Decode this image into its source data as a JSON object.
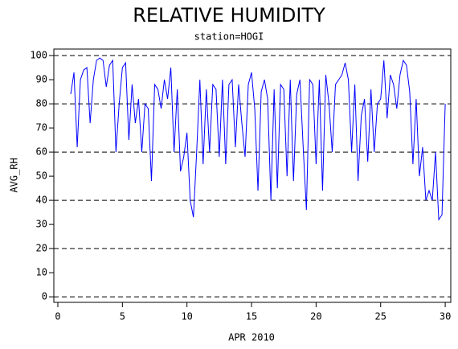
{
  "chart_data": {
    "type": "line",
    "title": "RELATIVE HUMIDITY",
    "subtitle": "station=HOGI",
    "x_label": "APR 2010",
    "y_label": "AVG_RH",
    "xlim": [
      -0.31,
      30.43
    ],
    "ylim": [
      -2.3,
      102.7
    ],
    "xticks": [
      0,
      5,
      10,
      15,
      20,
      25,
      30
    ],
    "yticks": [
      0,
      10,
      20,
      30,
      40,
      50,
      60,
      70,
      80,
      90,
      100
    ],
    "ygrid": [
      0,
      20,
      40,
      60,
      80,
      100
    ],
    "series": [
      {
        "color": "#0000ff",
        "x": [
          1,
          1.25,
          1.5,
          1.75,
          2,
          2.25,
          2.5,
          2.75,
          3,
          3.25,
          3.5,
          3.75,
          4,
          4.25,
          4.5,
          4.75,
          5,
          5.25,
          5.5,
          5.75,
          6,
          6.25,
          6.5,
          6.75,
          7,
          7.25,
          7.5,
          7.75,
          8,
          8.25,
          8.5,
          8.75,
          9,
          9.25,
          9.5,
          9.75,
          10,
          10.25,
          10.5,
          10.75,
          11,
          11.25,
          11.5,
          11.75,
          12,
          12.25,
          12.5,
          12.75,
          13,
          13.25,
          13.5,
          13.75,
          14,
          14.25,
          14.5,
          14.75,
          15,
          15.25,
          15.5,
          15.75,
          16,
          16.25,
          16.5,
          16.75,
          17,
          17.25,
          17.5,
          17.75,
          18,
          18.25,
          18.5,
          18.75,
          19,
          19.25,
          19.5,
          19.75,
          20,
          20.25,
          20.5,
          20.75,
          21,
          21.25,
          21.5,
          21.75,
          22,
          22.25,
          22.5,
          22.75,
          23,
          23.25,
          23.5,
          23.75,
          24,
          24.25,
          24.5,
          24.75,
          25,
          25.25,
          25.5,
          25.75,
          26,
          26.25,
          26.5,
          26.75,
          27,
          27.25,
          27.5,
          27.75,
          28,
          28.25,
          28.5,
          28.75,
          29,
          29.25,
          29.5,
          29.75,
          30
        ],
        "values": [
          84,
          93,
          62,
          90,
          94,
          95,
          72,
          90,
          98,
          99,
          98,
          87,
          96,
          98,
          60,
          80,
          95,
          97,
          65,
          88,
          72,
          82,
          60,
          80,
          78,
          48,
          88,
          86,
          78,
          90,
          82,
          95,
          60,
          86,
          52,
          58,
          68,
          40,
          33,
          60,
          90,
          55,
          86,
          60,
          88,
          86,
          58,
          90,
          55,
          88,
          90,
          62,
          88,
          72,
          58,
          88,
          93,
          78,
          44,
          85,
          90,
          82,
          40,
          86,
          45,
          88,
          86,
          50,
          90,
          48,
          84,
          90,
          62,
          36,
          90,
          88,
          55,
          90,
          44,
          92,
          80,
          60,
          88,
          90,
          92,
          97,
          90,
          60,
          88,
          48,
          75,
          82,
          56,
          86,
          60,
          80,
          82,
          98,
          74,
          92,
          88,
          78,
          92,
          98,
          96,
          85,
          55,
          82,
          50,
          62,
          40,
          44,
          40,
          60,
          32,
          34,
          80
        ]
      }
    ]
  }
}
